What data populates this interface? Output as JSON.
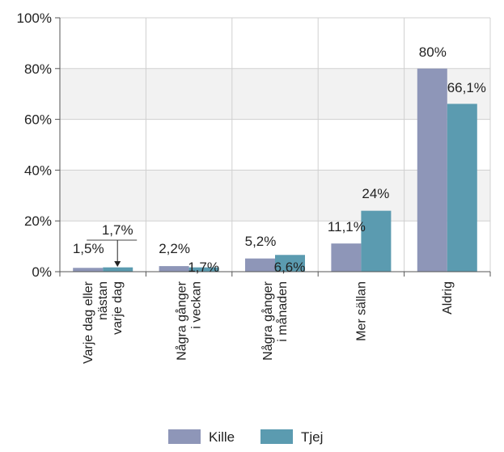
{
  "chart_data": {
    "type": "bar",
    "categories": [
      [
        "Varje dag eller",
        "nästan",
        "varje dag"
      ],
      [
        "Några gånger",
        "i veckan"
      ],
      [
        "Några gånger",
        "i månaden"
      ],
      [
        "Mer sällan"
      ],
      [
        "Aldrig"
      ]
    ],
    "series": [
      {
        "name": "Kille",
        "color": "#8e96b8",
        "values": [
          1.5,
          2.2,
          5.2,
          11.1,
          80
        ],
        "labels": [
          "1,5%",
          "2,2%",
          "5,2%",
          "11,1%",
          "80%"
        ]
      },
      {
        "name": "Tjej",
        "color": "#5b9bb0",
        "values": [
          1.7,
          1.7,
          6.6,
          24,
          66.1
        ],
        "labels": [
          "1,7%",
          "1,7%",
          "6,6%",
          "24%",
          "66,1%"
        ]
      }
    ],
    "ylim": [
      0,
      100
    ],
    "yticks": [
      "0%",
      "20%",
      "40%",
      "60%",
      "80%",
      "100%"
    ],
    "grid": true,
    "alternating_bands": true,
    "legend_position": "bottom"
  }
}
